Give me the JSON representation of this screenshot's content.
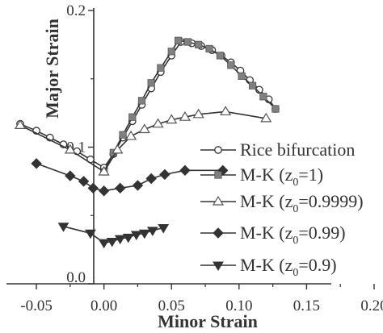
{
  "chart_data": {
    "type": "line",
    "xlabel": "Minor Strain",
    "ylabel": "Major Strain",
    "xlim": [
      -0.065,
      0.2
    ],
    "ylim": [
      0.0,
      0.2
    ],
    "x_ticks": [
      "-0.05",
      "0.00",
      "0.05",
      "0.10",
      "0.15",
      "0.20"
    ],
    "x_tick_values": [
      -0.05,
      0.0,
      0.05,
      0.1,
      0.15,
      0.2
    ],
    "y_ticks": [
      "0.0",
      "0.1",
      "0.2"
    ],
    "y_tick_values": [
      0.0,
      0.1,
      0.2
    ],
    "legend_position": "right",
    "series": [
      {
        "name": "Rice bifurcation",
        "label_parts": [
          "Rice bifurcation"
        ],
        "marker": "circle-open",
        "color": "#333333",
        "points": [
          [
            -0.062,
            0.117
          ],
          [
            -0.05,
            0.112
          ],
          [
            -0.04,
            0.107
          ],
          [
            -0.03,
            0.102
          ],
          [
            -0.02,
            0.097
          ],
          [
            -0.01,
            0.091
          ],
          [
            0.0,
            0.085
          ],
          [
            0.007,
            0.095
          ],
          [
            0.014,
            0.107
          ],
          [
            0.021,
            0.119
          ],
          [
            0.028,
            0.131
          ],
          [
            0.035,
            0.143
          ],
          [
            0.042,
            0.155
          ],
          [
            0.05,
            0.167
          ],
          [
            0.057,
            0.177
          ],
          [
            0.065,
            0.176
          ],
          [
            0.072,
            0.174
          ],
          [
            0.08,
            0.171
          ],
          [
            0.087,
            0.167
          ],
          [
            0.094,
            0.162
          ],
          [
            0.101,
            0.156
          ],
          [
            0.108,
            0.149
          ],
          [
            0.115,
            0.142
          ],
          [
            0.122,
            0.135
          ],
          [
            0.127,
            0.128
          ]
        ]
      },
      {
        "name": "M-K (z0=1)",
        "label_parts": [
          "M-K (z",
          "0",
          "=1)"
        ],
        "marker": "square-filled",
        "color": "#333333",
        "points": [
          [
            0.0,
            0.082
          ],
          [
            0.007,
            0.096
          ],
          [
            0.014,
            0.109
          ],
          [
            0.021,
            0.122
          ],
          [
            0.028,
            0.134
          ],
          [
            0.035,
            0.147
          ],
          [
            0.042,
            0.158
          ],
          [
            0.05,
            0.17
          ],
          [
            0.055,
            0.178
          ],
          [
            0.062,
            0.177
          ],
          [
            0.07,
            0.175
          ],
          [
            0.078,
            0.172
          ],
          [
            0.086,
            0.167
          ],
          [
            0.094,
            0.16
          ],
          [
            0.102,
            0.152
          ],
          [
            0.11,
            0.145
          ],
          [
            0.118,
            0.137
          ],
          [
            0.127,
            0.128
          ]
        ]
      },
      {
        "name": "M-K (z0=0.9999)",
        "label_parts": [
          "M-K (z",
          "0",
          "=0.9999)"
        ],
        "marker": "triangle-open",
        "color": "#333333",
        "points": [
          [
            -0.062,
            0.116
          ],
          [
            -0.025,
            0.098
          ],
          [
            0.0,
            0.082
          ],
          [
            0.01,
            0.098
          ],
          [
            0.02,
            0.108
          ],
          [
            0.03,
            0.113
          ],
          [
            0.04,
            0.117
          ],
          [
            0.05,
            0.12
          ],
          [
            0.06,
            0.122
          ],
          [
            0.07,
            0.124
          ],
          [
            0.09,
            0.126
          ],
          [
            0.12,
            0.121
          ]
        ]
      },
      {
        "name": "M-K (z0=0.99)",
        "label_parts": [
          "M-K (z",
          "0",
          "=0.99)"
        ],
        "marker": "diamond-filled",
        "color": "#333333",
        "points": [
          [
            -0.05,
            0.088
          ],
          [
            -0.025,
            0.079
          ],
          [
            -0.015,
            0.075
          ],
          [
            -0.008,
            0.07
          ],
          [
            0.0,
            0.068
          ],
          [
            0.012,
            0.07
          ],
          [
            0.025,
            0.072
          ],
          [
            0.035,
            0.077
          ],
          [
            0.045,
            0.08
          ],
          [
            0.06,
            0.083
          ],
          [
            0.088,
            0.083
          ]
        ]
      },
      {
        "name": "M-K (z0=0.9)",
        "label_parts": [
          "M-K (z",
          "0",
          "=0.9)"
        ],
        "marker": "triangle-down-filled",
        "color": "#333333",
        "points": [
          [
            -0.03,
            0.042
          ],
          [
            -0.01,
            0.037
          ],
          [
            0.0,
            0.03
          ],
          [
            0.006,
            0.031
          ],
          [
            0.012,
            0.033
          ],
          [
            0.018,
            0.034
          ],
          [
            0.024,
            0.036
          ],
          [
            0.03,
            0.037
          ],
          [
            0.036,
            0.039
          ],
          [
            0.044,
            0.041
          ]
        ]
      }
    ]
  }
}
